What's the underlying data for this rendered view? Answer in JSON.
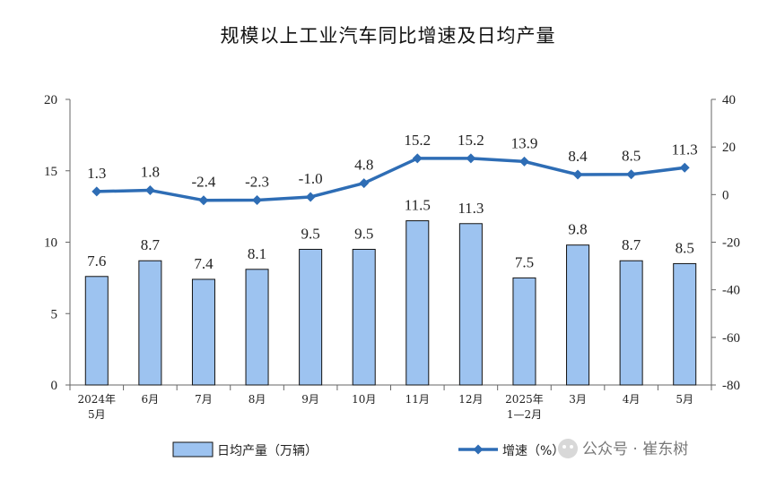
{
  "chart_data": {
    "type": "bar+line",
    "title": "规模以上工业汽车同比增速及日均产量",
    "categories": [
      [
        "2024年",
        "5月"
      ],
      [
        "6月"
      ],
      [
        "7月"
      ],
      [
        "8月"
      ],
      [
        "9月"
      ],
      [
        "10月"
      ],
      [
        "11月"
      ],
      [
        "12月"
      ],
      [
        "2025年",
        "1—2月"
      ],
      [
        "3月"
      ],
      [
        "4月"
      ],
      [
        "5月"
      ]
    ],
    "series": [
      {
        "name": "日均产量（万辆）",
        "type": "bar",
        "axis": "left",
        "color": "#9DC3F0",
        "values": [
          7.6,
          8.7,
          7.4,
          8.1,
          9.5,
          9.5,
          11.5,
          11.3,
          7.5,
          9.8,
          8.7,
          8.5
        ],
        "labels": [
          "7.6",
          "8.7",
          "7.4",
          "8.1",
          "9.5",
          "9.5",
          "11.5",
          "11.3",
          "7.5",
          "9.8",
          "8.7",
          "8.5"
        ]
      },
      {
        "name": "增速（%）",
        "type": "line",
        "axis": "right",
        "color": "#2E6DB5",
        "values": [
          1.3,
          1.8,
          -2.4,
          -2.3,
          -1.0,
          4.8,
          15.2,
          15.2,
          13.9,
          8.4,
          8.5,
          11.3
        ],
        "labels": [
          "1.3",
          "1.8",
          "-2.4",
          "-2.3",
          "-1.0",
          "4.8",
          "15.2",
          "15.2",
          "13.9",
          "8.4",
          "8.5",
          "11.3"
        ]
      }
    ],
    "y_left": {
      "min": 0,
      "max": 20,
      "ticks": [
        "0",
        "5",
        "10",
        "15",
        "20"
      ]
    },
    "y_right": {
      "min": -80,
      "max": 40,
      "ticks": [
        "-80",
        "-60",
        "-40",
        "-20",
        "0",
        "20",
        "40"
      ]
    },
    "legend": "bottom",
    "grid": false
  },
  "watermark": "公众号 · 崔东树"
}
